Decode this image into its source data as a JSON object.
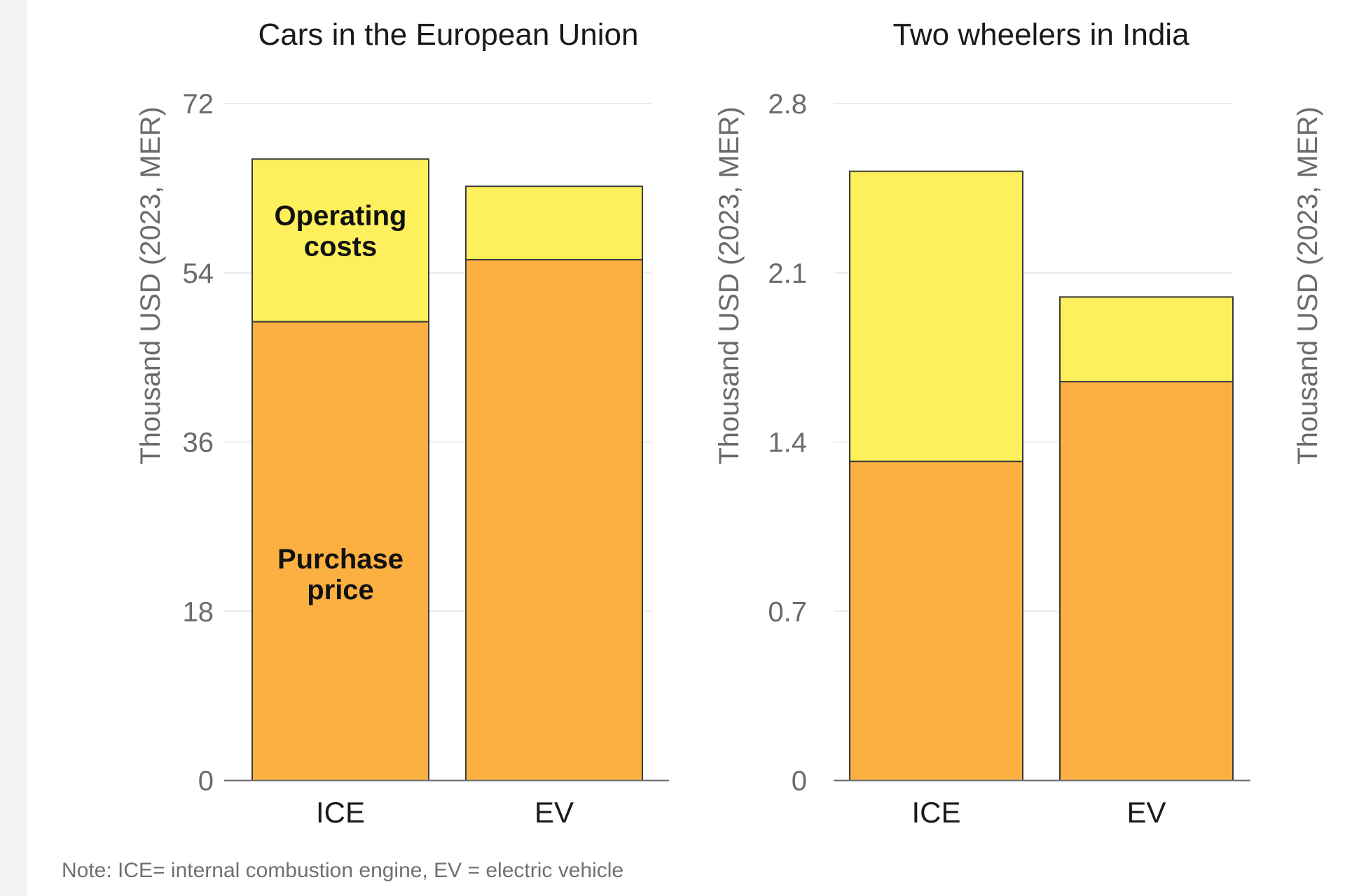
{
  "chart_data": [
    {
      "type": "bar",
      "stacked": true,
      "title": "Cars in the European Union",
      "ylabel": "Thousand USD (2023, MER)",
      "xlabel": "",
      "categories": [
        "ICE",
        "EV"
      ],
      "ylim": [
        0,
        72
      ],
      "yticks": [
        "0",
        "18",
        "36",
        "54",
        "72"
      ],
      "grid": true,
      "series": [
        {
          "name": "Purchase price",
          "values": [
            48.8,
            55.4
          ],
          "color": "#fdb042"
        },
        {
          "name": "Operating costs",
          "values": [
            17.3,
            7.8
          ],
          "color": "#fdf05c"
        }
      ],
      "annotations": [
        {
          "series": "Operating costs",
          "lines": [
            "Operating",
            "costs"
          ]
        },
        {
          "series": "Purchase price",
          "lines": [
            "Purchase",
            "price"
          ]
        }
      ]
    },
    {
      "type": "bar",
      "stacked": true,
      "title": "Two wheelers in India",
      "ylabel": "Thousand USD (2023, MER)",
      "xlabel": "",
      "categories": [
        "ICE",
        "EV"
      ],
      "ylim": [
        0,
        2.8
      ],
      "yticks": [
        "0",
        "0.7",
        "1.4",
        "2.1",
        "2.8"
      ],
      "grid": true,
      "series": [
        {
          "name": "Purchase price",
          "values": [
            1.32,
            1.65
          ],
          "color": "#fdb042"
        },
        {
          "name": "Operating costs",
          "values": [
            1.2,
            0.35
          ],
          "color": "#fdf05c"
        }
      ]
    }
  ],
  "right_axis_label": "Thousand USD (2023, MER)",
  "note": "Note: ICE= internal combustion engine, EV = electric vehicle"
}
